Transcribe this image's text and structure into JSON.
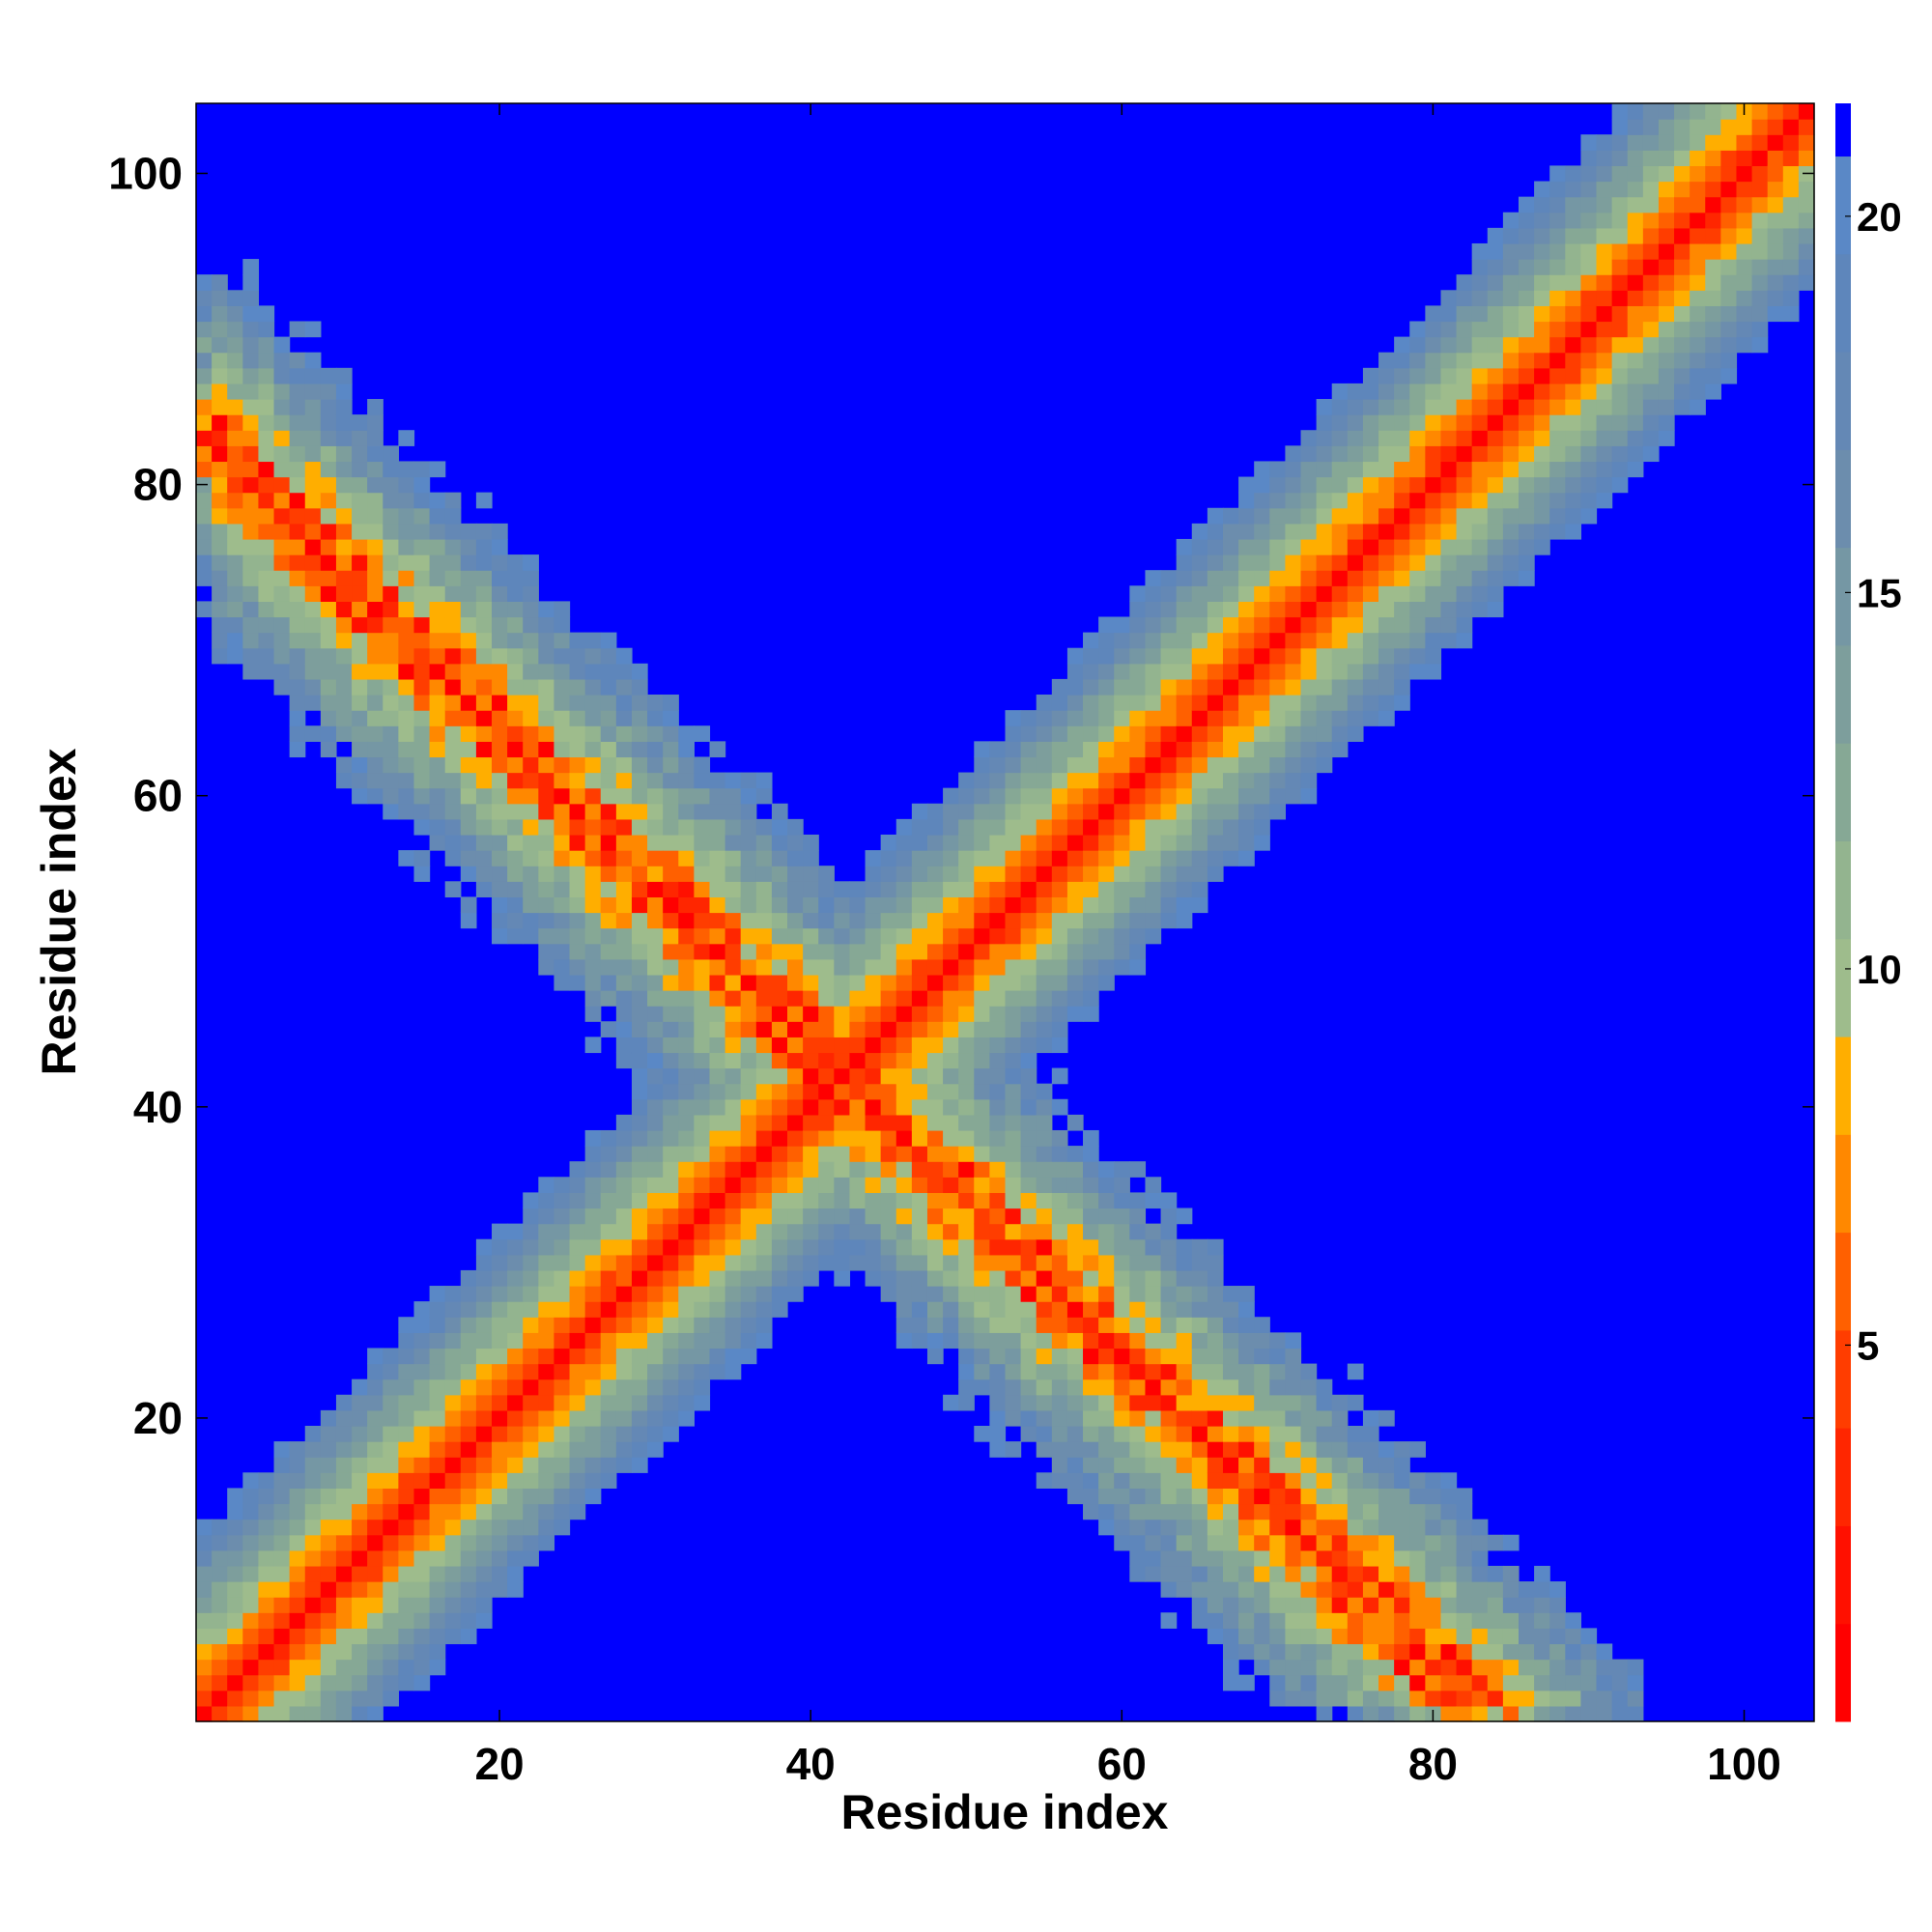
{
  "chart_data": {
    "type": "heatmap",
    "title": "",
    "xlabel": "Residue index",
    "ylabel": "Residue index",
    "xlim": [
      1,
      104
    ],
    "ylim": [
      1,
      104
    ],
    "xticks": [
      20,
      40,
      60,
      80,
      100
    ],
    "yticks": [
      20,
      40,
      60,
      80,
      100
    ],
    "x_tick_labels": [
      "20",
      "40",
      "60",
      "80",
      "100"
    ],
    "y_tick_labels": [
      "20",
      "40",
      "60",
      "80",
      "100"
    ],
    "grid": false,
    "colorbar": {
      "range": [
        0,
        21.5
      ],
      "ticks": [
        5,
        10,
        15,
        20
      ],
      "tick_labels": [
        "5",
        "10",
        "15",
        "20"
      ],
      "placement": "right",
      "colors": [
        {
          "min": 0,
          "max": 1.3,
          "color": "#ff0000"
        },
        {
          "min": 1.3,
          "max": 2.6,
          "color": "#ff1000"
        },
        {
          "min": 2.6,
          "max": 3.9,
          "color": "#ff2600"
        },
        {
          "min": 3.9,
          "max": 5.2,
          "color": "#ff3d00"
        },
        {
          "min": 5.2,
          "max": 6.5,
          "color": "#ff6000"
        },
        {
          "min": 6.5,
          "max": 7.8,
          "color": "#ff8800"
        },
        {
          "min": 7.8,
          "max": 9.1,
          "color": "#ffae00"
        },
        {
          "min": 9.1,
          "max": 10.4,
          "color": "#9ebc8c"
        },
        {
          "min": 10.4,
          "max": 11.7,
          "color": "#93b48f"
        },
        {
          "min": 11.7,
          "max": 13.0,
          "color": "#86a895"
        },
        {
          "min": 13.0,
          "max": 14.3,
          "color": "#7d9e9c"
        },
        {
          "min": 14.3,
          "max": 15.6,
          "color": "#7597a4"
        },
        {
          "min": 15.6,
          "max": 16.9,
          "color": "#6c8dad"
        },
        {
          "min": 16.9,
          "max": 18.2,
          "color": "#6488b5"
        },
        {
          "min": 18.2,
          "max": 19.5,
          "color": "#5e86bb"
        },
        {
          "min": 19.5,
          "max": 20.8,
          "color": "#5a88c6"
        },
        {
          "min": 20.8,
          "max": 21.5,
          "color": "#0000ff"
        }
      ]
    },
    "description_of_pattern": "",
    "matrix_size": 104
  }
}
